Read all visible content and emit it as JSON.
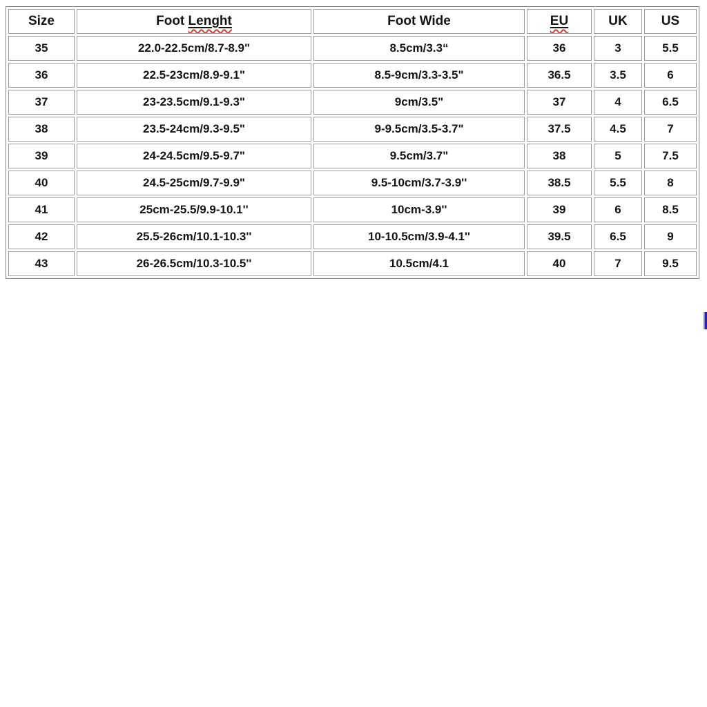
{
  "chart_data": {
    "type": "table",
    "columns": [
      "Size",
      "Foot Lenght",
      "Foot Wide",
      "EU",
      "UK",
      "US"
    ],
    "rows": [
      [
        "35",
        "22.0-22.5cm/8.7-8.9\"",
        "8.5cm/3.3“",
        "36",
        "3",
        "5.5"
      ],
      [
        "36",
        "22.5-23cm/8.9-9.1\"",
        "8.5-9cm/3.3-3.5\"",
        "36.5",
        "3.5",
        "6"
      ],
      [
        "37",
        "23-23.5cm/9.1-9.3\"",
        "9cm/3.5\"",
        "37",
        "4",
        "6.5"
      ],
      [
        "38",
        "23.5-24cm/9.3-9.5\"",
        "9-9.5cm/3.5-3.7\"",
        "37.5",
        "4.5",
        "7"
      ],
      [
        "39",
        "24-24.5cm/9.5-9.7\"",
        "9.5cm/3.7\"",
        "38",
        "5",
        "7.5"
      ],
      [
        "40",
        "24.5-25cm/9.7-9.9\"",
        "9.5-10cm/3.7-3.9''",
        "38.5",
        "5.5",
        "8"
      ],
      [
        "41",
        "25cm-25.5/9.9-10.1''",
        "10cm-3.9''",
        "39",
        "6",
        "8.5"
      ],
      [
        "42",
        "25.5-26cm/10.1-10.3''",
        "10-10.5cm/3.9-4.1''",
        "39.5",
        "6.5",
        "9"
      ],
      [
        "43",
        "26-26.5cm/10.3-10.5''",
        "10.5cm/4.1",
        "40",
        "7",
        "9.5"
      ]
    ],
    "layout": {
      "grid": true,
      "header_decorations": "Lenght and EU shown with underline and red spell-check squiggle"
    }
  },
  "header": {
    "foot_length_prefix": "Foot",
    "foot_length_word": "Lenght"
  },
  "colors": {
    "background": "#ffffff",
    "text": "#141414",
    "cell_border": "#9a9a9a",
    "outer_border": "#7f7f7f",
    "spellcheck_red": "#e03a31",
    "artifact_blue": "#2a22b4",
    "artifact_edge": "#8585dd"
  }
}
